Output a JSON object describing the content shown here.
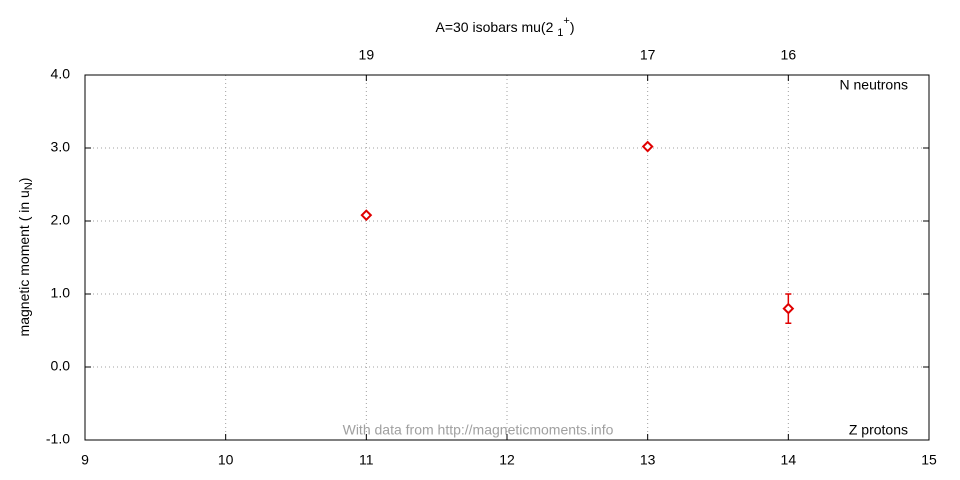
{
  "chart_data": {
    "type": "scatter",
    "title": {
      "main": "A=30 isobars mu(2 ",
      "subscript": "1",
      "superscript": "+",
      "close": ")"
    },
    "y_label": {
      "main": "magnetic moment ( in u",
      "subscript": "N",
      "close": ")"
    },
    "annotations": {
      "top_right": "N neutrons",
      "bottom_right": "Z protons",
      "credit": "With data from http://magneticmoments.info"
    },
    "series": [
      {
        "name": "mu",
        "color": "#e00000",
        "x": [
          11,
          13,
          14
        ],
        "values": [
          2.08,
          3.02,
          0.8
        ],
        "errors": [
          0.02,
          0.02,
          0.2
        ]
      }
    ],
    "xlim": [
      9,
      15
    ],
    "xticks": [
      9,
      10,
      11,
      12,
      13,
      14,
      15
    ],
    "x2ticks": [
      {
        "value": 11,
        "label": "19"
      },
      {
        "value": 13,
        "label": "17"
      },
      {
        "value": 14,
        "label": "16"
      }
    ],
    "ylim": [
      -1,
      4
    ],
    "yticks": [
      {
        "value": -1,
        "label": "-1.0"
      },
      {
        "value": 0,
        "label": "0.0"
      },
      {
        "value": 1,
        "label": "1.0"
      },
      {
        "value": 2,
        "label": "2.0"
      },
      {
        "value": 3,
        "label": "3.0"
      },
      {
        "value": 4,
        "label": "4.0"
      }
    ],
    "grid": true
  }
}
